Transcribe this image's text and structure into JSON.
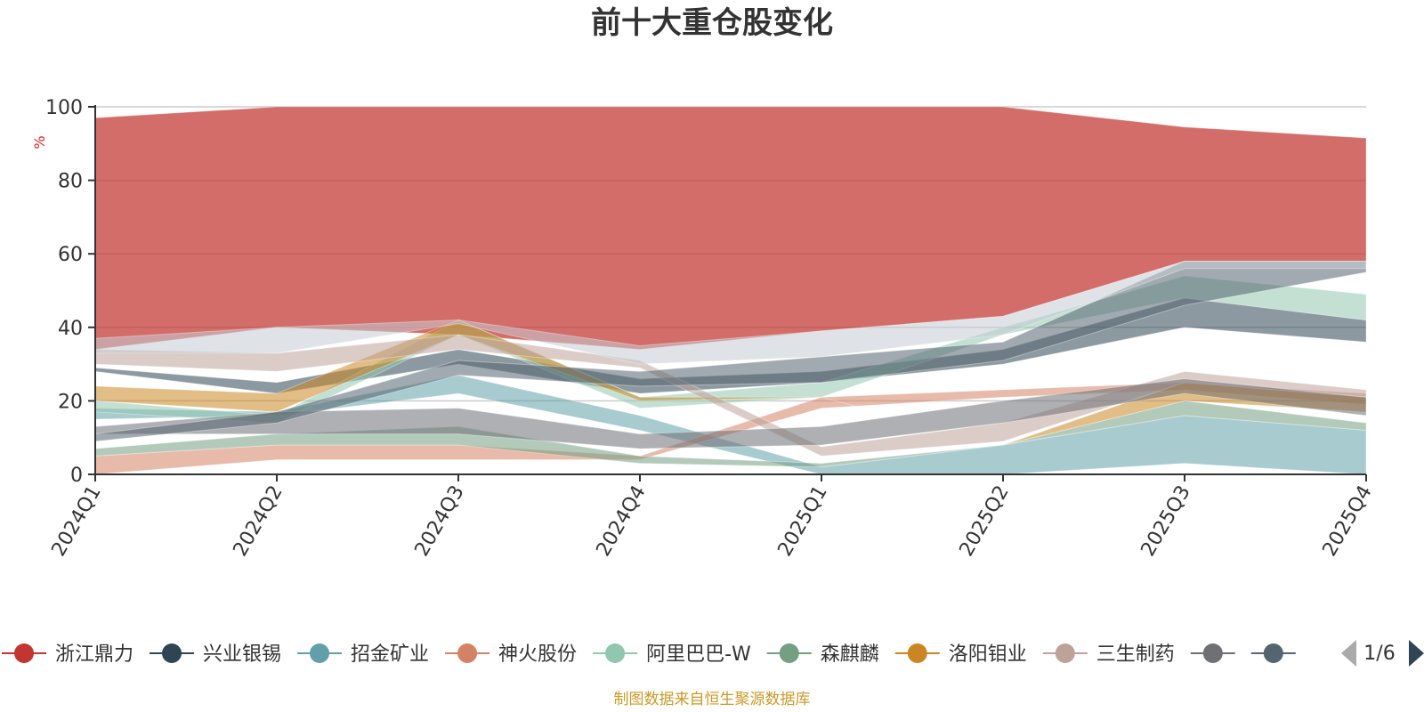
{
  "chart_data": {
    "type": "area",
    "title": "前十大重仓股变化",
    "ylabel": "%",
    "ylim": [
      0,
      100
    ],
    "yticks": [
      0,
      20,
      40,
      60,
      80,
      100
    ],
    "categories": [
      "2024Q1",
      "2024Q2",
      "2024Q3",
      "2024Q4",
      "2025Q1",
      "2025Q2",
      "2025Q3",
      "2025Q4"
    ],
    "grid": true,
    "legend_position": "bottom",
    "legend_page": "1/6",
    "source": "制图数据来自恒生聚源数据库",
    "series": [
      {
        "name": "浙江鼎力",
        "color": "#c23531",
        "values": [
          [
            34,
            97
          ],
          [
            40,
            100
          ],
          [
            38,
            100
          ],
          [
            34,
            100
          ],
          [
            39,
            100
          ],
          [
            43,
            100
          ],
          [
            58,
            94.5
          ],
          [
            58,
            91.5
          ]
        ]
      },
      {
        "name": "兴业银锡",
        "color": "#2f4554",
        "values": [
          [
            28,
            29
          ],
          [
            22,
            25
          ],
          [
            30,
            34
          ],
          [
            22,
            26
          ],
          [
            25,
            28
          ],
          [
            30,
            34
          ],
          [
            40,
            48
          ],
          [
            36,
            42
          ]
        ]
      },
      {
        "name": "招金矿业",
        "color": "#61a0a8",
        "values": [
          [
            15,
            18
          ],
          [
            16,
            17
          ],
          [
            22,
            27
          ],
          [
            12,
            16
          ],
          [
            0,
            2
          ],
          [
            0,
            8
          ],
          [
            3,
            16
          ],
          [
            0,
            12
          ]
        ]
      },
      {
        "name": "神火股份",
        "color": "#d48265",
        "values": [
          [
            0,
            5
          ],
          [
            4,
            8
          ],
          [
            4,
            8
          ],
          [
            4,
            5
          ],
          [
            18,
            21
          ],
          [
            21,
            23
          ],
          [
            23,
            25
          ],
          [
            19,
            22
          ]
        ]
      },
      {
        "name": "阿里巴巴-W",
        "color": "#91c7ae",
        "values": [
          [
            17,
            20
          ],
          [
            14,
            16
          ],
          [
            38,
            42
          ],
          [
            18,
            21
          ],
          [
            21,
            25
          ],
          [
            38,
            40
          ],
          [
            48,
            54
          ],
          [
            42,
            49
          ]
        ]
      },
      {
        "name": "森麒麟",
        "color": "#749f83",
        "values": [
          [
            5,
            7
          ],
          [
            8,
            11
          ],
          [
            8,
            13
          ],
          [
            3,
            5
          ],
          [
            2,
            3
          ],
          [
            8,
            8
          ],
          [
            16,
            20
          ],
          [
            12,
            14
          ]
        ]
      },
      {
        "name": "洛阳钼业",
        "color": "#ca8622",
        "values": [
          [
            20,
            24
          ],
          [
            17,
            22
          ],
          [
            38,
            42
          ],
          [
            20,
            21
          ],
          [
            21,
            21
          ],
          [
            8,
            8
          ],
          [
            20,
            25
          ],
          [
            17,
            21
          ]
        ]
      },
      {
        "name": "三生制药",
        "color": "#bda29a",
        "values": [
          [
            30,
            34
          ],
          [
            28,
            33
          ],
          [
            34,
            38
          ],
          [
            29,
            31
          ],
          [
            5,
            7.5
          ],
          [
            9,
            14
          ],
          [
            25,
            28
          ],
          [
            21,
            23
          ]
        ]
      },
      {
        "name": "",
        "color": "#6e7074",
        "values": [
          [
            11,
            13
          ],
          [
            11,
            17
          ],
          [
            11,
            18
          ],
          [
            7,
            11
          ],
          [
            8,
            13
          ],
          [
            14,
            20
          ],
          [
            22,
            26
          ],
          [
            16,
            21
          ]
        ]
      },
      {
        "name": "",
        "color": "#546570",
        "values": [
          [
            9,
            11
          ],
          [
            14,
            17
          ],
          [
            27,
            31
          ],
          [
            24,
            28
          ],
          [
            25,
            32
          ],
          [
            31,
            36
          ],
          [
            46,
            58
          ],
          [
            55,
            58
          ]
        ]
      },
      {
        "name": "",
        "color": "#c4ccd3",
        "values": [
          [
            33,
            37
          ],
          [
            33,
            40
          ],
          [
            41,
            42
          ],
          [
            30,
            35
          ],
          [
            32,
            39
          ],
          [
            38,
            43
          ],
          [
            56,
            58
          ],
          [
            56,
            58
          ]
        ]
      }
    ]
  }
}
